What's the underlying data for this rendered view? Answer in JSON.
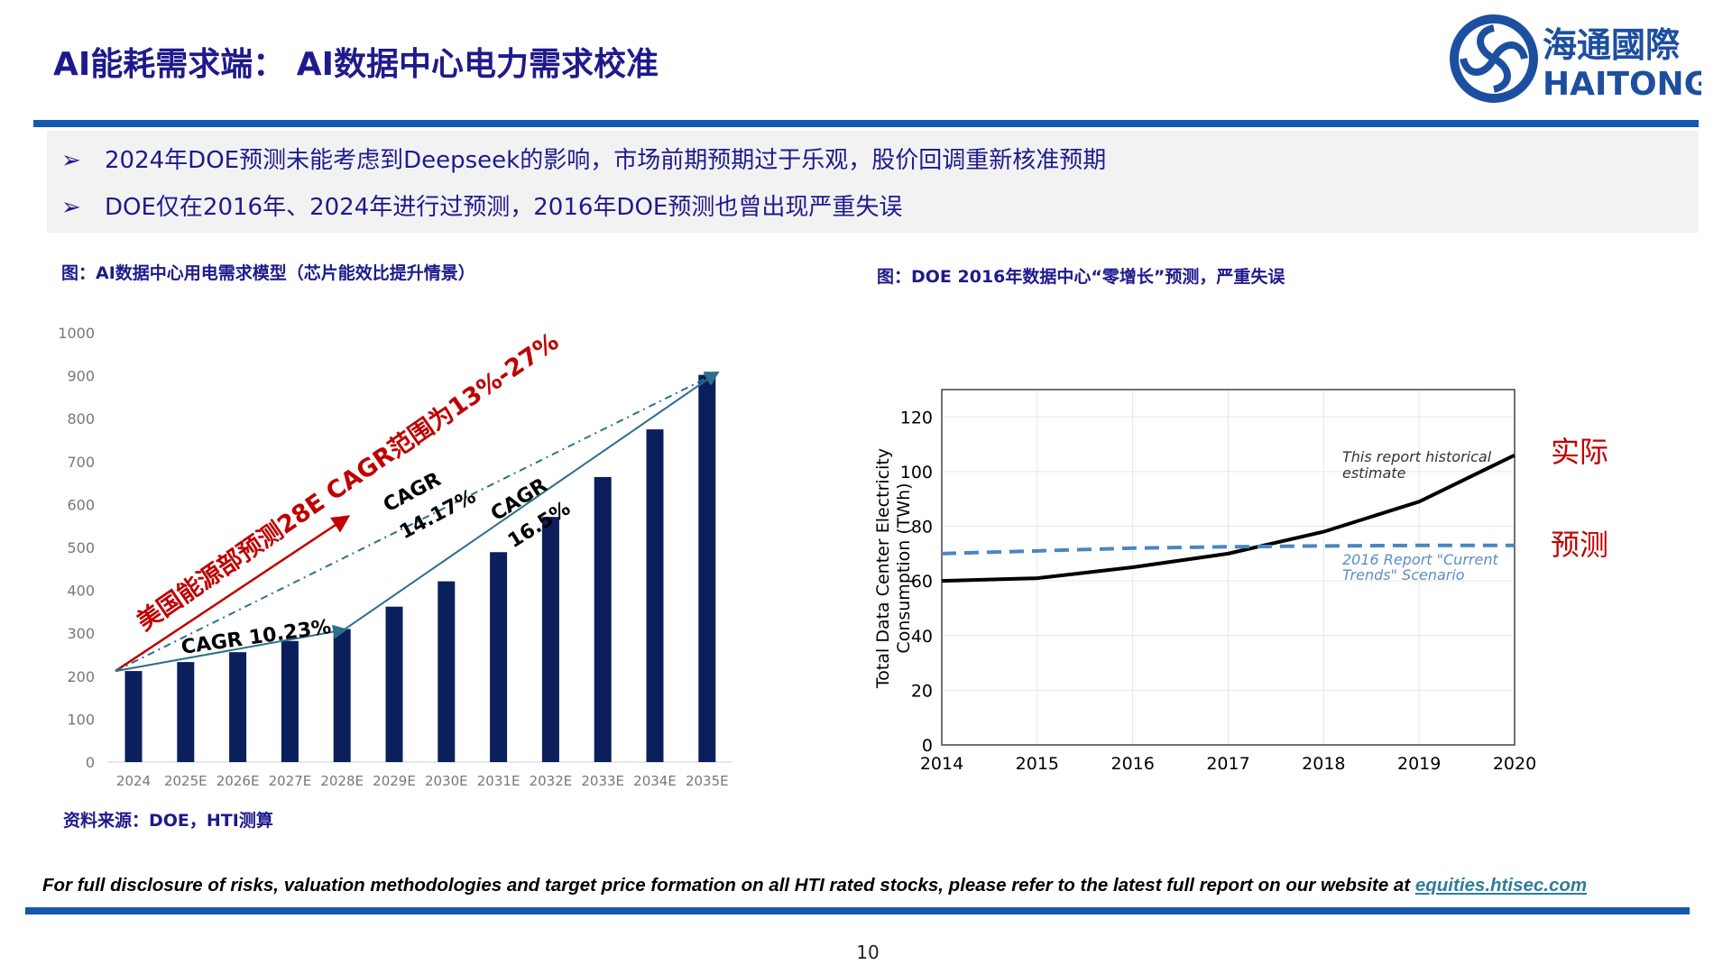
{
  "header": {
    "title": "AI能耗需求端： AI数据中心电力需求校准"
  },
  "logo": {
    "chinese": "海通國際",
    "english": "HAITONG",
    "color": "#1d4fa0"
  },
  "bullets": [
    {
      "icon": "arrow-bullet-icon",
      "text": "2024年DOE预测未能考虑到Deepseek的影响，市场前期预期过于乐观，股价回调重新核准预期"
    },
    {
      "icon": "arrow-bullet-icon",
      "text": "DOE仅在2016年、2024年进行过预测，2016年DOE预测也曾出现严重失误"
    }
  ],
  "left_caption": "图：AI数据中心用电需求模型（芯片能效比提升情景）",
  "right_caption": "图：DOE 2016年数据中心“零增长”预测，严重失误",
  "source": "资料来源：DOE，HTI测算",
  "footer": {
    "text": "For full disclosure of risks, valuation methodologies and target price formation on all HTI rated stocks, please refer to the latest full report on our website at ",
    "link": "equities.htisec.com"
  },
  "page_number": "10",
  "right_labels": {
    "actual": "实际",
    "forecast": "预测"
  },
  "chart_data": [
    {
      "type": "bar",
      "categories": [
        "2024",
        "2025E",
        "2026E",
        "2027E",
        "2028E",
        "2029E",
        "2030E",
        "2031E",
        "2032E",
        "2033E",
        "2034E",
        "2035E"
      ],
      "values": [
        212,
        233,
        256,
        282,
        310,
        362,
        421,
        489,
        571,
        664,
        775,
        902
      ],
      "ylim": [
        0,
        1000
      ],
      "yticks": [
        "0",
        "100",
        "200",
        "300",
        "400",
        "500",
        "600",
        "700",
        "800",
        "900",
        "1000"
      ],
      "grid": false,
      "color": "#0b1f5c",
      "annotations": {
        "doe": "美国能源部预测28E CAGR范围为13%-27%",
        "cagr1": "CAGR 10.23%",
        "cagr2_a": "CAGR",
        "cagr2_b": "14.17%",
        "cagr3_a": "CAGR",
        "cagr3_b": "16.5%"
      }
    },
    {
      "type": "line",
      "ylabel": "Total Data Center Electricity Consumption (TWh)",
      "x": [
        2014,
        2015,
        2016,
        2017,
        2018,
        2019,
        2020
      ],
      "xticks": [
        "2014",
        "2015",
        "2016",
        "2017",
        "2018",
        "2019",
        "2020"
      ],
      "yticks": [
        "0",
        "20",
        "40",
        "60",
        "80",
        "100",
        "120"
      ],
      "ylim": [
        0,
        130
      ],
      "xlim": [
        2014,
        2020
      ],
      "grid": true,
      "series": [
        {
          "name": "This report historical estimate",
          "values": [
            60,
            61,
            65,
            70,
            78,
            89,
            106
          ],
          "color": "#000000",
          "style": "solid"
        },
        {
          "name": "2016 Report \"Current Trends\" Scenario",
          "values": [
            70,
            71,
            72,
            72.5,
            72.8,
            73,
            73
          ],
          "color": "#4a86c0",
          "style": "dashed"
        }
      ],
      "annotation_lines": {
        "hist_1": "This report historical",
        "hist_2": "estimate",
        "fc_1": "2016 Report \"Current",
        "fc_2": "Trends\" Scenario"
      }
    }
  ]
}
